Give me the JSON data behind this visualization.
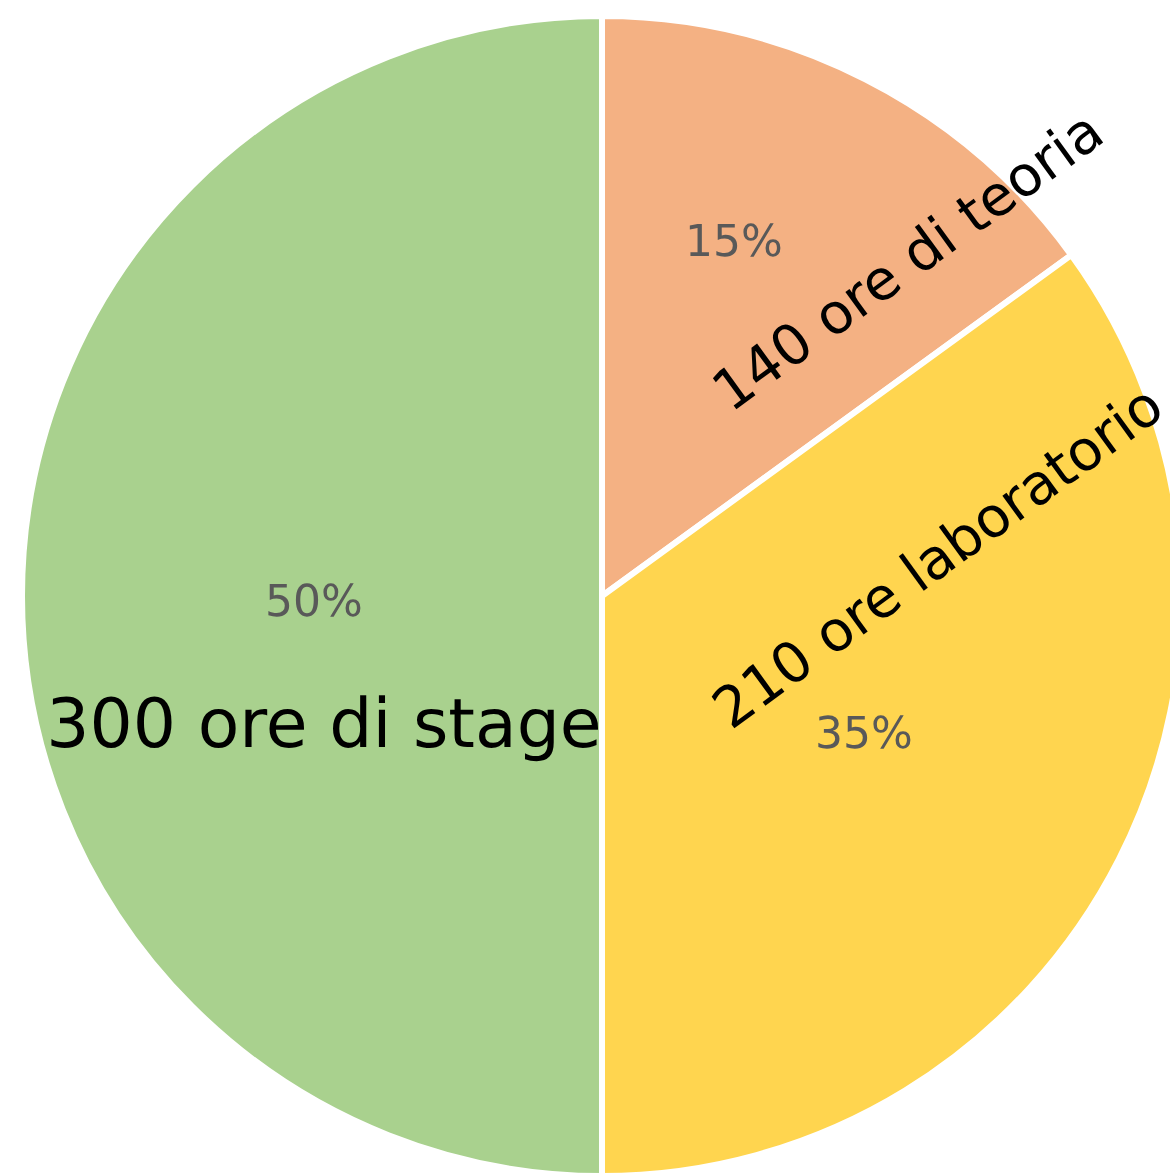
{
  "chart_data": {
    "type": "pie",
    "categories": [
      "140 ore di teoria",
      "210 ore laboratorio",
      "300 ore di stage"
    ],
    "values": [
      15,
      35,
      50
    ],
    "colors": [
      "#f4b183",
      "#ffd54f",
      "#a9d18e"
    ],
    "value_labels": [
      "15%",
      "35%",
      "50%"
    ]
  }
}
